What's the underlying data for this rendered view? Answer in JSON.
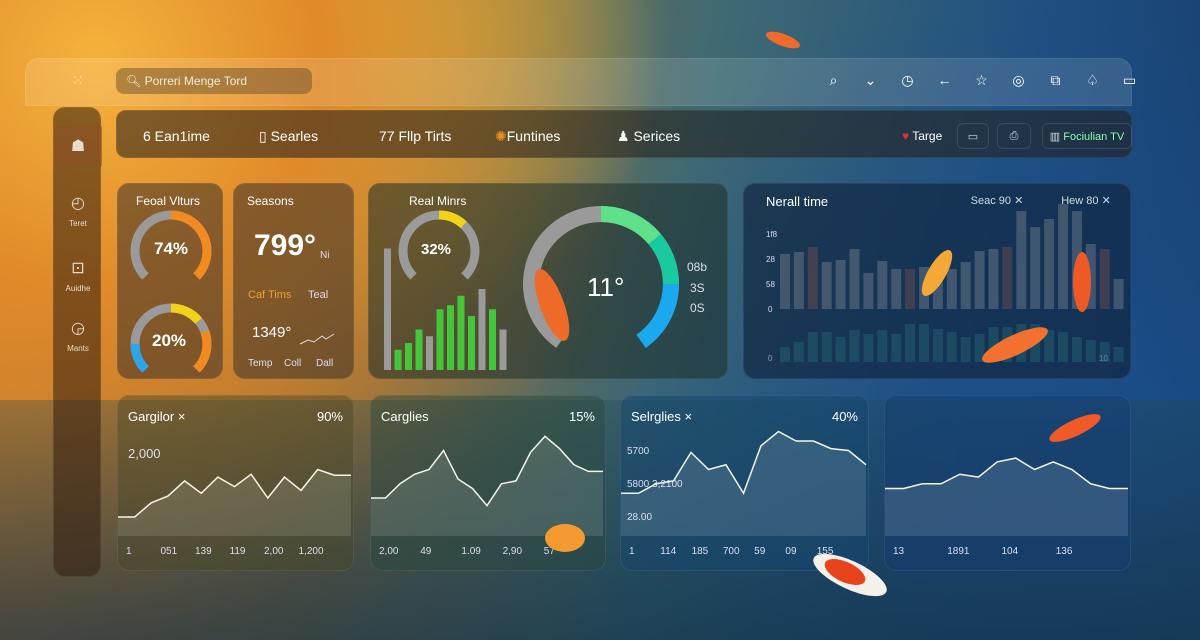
{
  "search": {
    "placeholder": "Porreri Menge Tord"
  },
  "toolbar_icons": [
    "search-icon",
    "chevron-down-icon",
    "clock-icon",
    "back-arrow-icon",
    "star-icon",
    "compass-icon",
    "copy-icon",
    "bell-icon",
    "window-icon"
  ],
  "sidebar": {
    "items": [
      {
        "label": "",
        "icon": "user-icon"
      },
      {
        "label": "Teret",
        "icon": "clock-icon"
      },
      {
        "label": "Auidhe",
        "icon": "image-icon"
      },
      {
        "label": "Mants",
        "icon": "timer-icon"
      }
    ]
  },
  "nav": {
    "items": [
      {
        "label": "6 Ean1ime"
      },
      {
        "label": "Searles",
        "icon": "document-icon"
      },
      {
        "label": "77 Fllp Tirts"
      },
      {
        "label": "Funtines",
        "icon": "sun-icon"
      },
      {
        "label": "Serices",
        "icon": "person-icon"
      }
    ],
    "right": {
      "target": "Targe",
      "tv": "Fociulian TV"
    }
  },
  "cards": {
    "gauges": {
      "title": "Feoal Vlturs",
      "g1": "74%",
      "g2": "20%",
      "v1": 74,
      "v2": 20
    },
    "seasons": {
      "title": "Seasons",
      "value": "799°",
      "unit": "Ni",
      "tab1": "Caf Tims",
      "tab2": "Teal",
      "value2": "1349°",
      "labels": [
        "Temp",
        "Coll",
        "Dall"
      ]
    },
    "real": {
      "title": "Real Minrs",
      "gauge": "32%",
      "gv": 32,
      "big": "11°",
      "scale": [
        "08b",
        "3S",
        "0S"
      ]
    },
    "overall": {
      "title": "Nerall time",
      "chip1": "Seac 90",
      "chip2": "Hew 80",
      "yticks": [
        "1f8",
        "28",
        "58",
        "0"
      ],
      "ylow": "0",
      "yend": "10"
    }
  },
  "colors": {
    "orange": "#f28a22",
    "yellow": "#f3d21a",
    "blue": "#2ba6ea",
    "green": "#46c53a",
    "gray": "#9a9a9a"
  },
  "chart_data": [
    {
      "type": "area",
      "title": "Gargilor ×",
      "badge": "90%",
      "ytick": "2,000",
      "xticks": [
        "1",
        "051",
        "139",
        "119",
        "2,00",
        "1,200"
      ],
      "values": [
        20,
        20,
        35,
        42,
        58,
        45,
        62,
        52,
        65,
        40,
        62,
        48,
        70,
        64,
        64
      ]
    },
    {
      "type": "area",
      "title": "Carglies",
      "badge": "15%",
      "ytick": "",
      "xticks": [
        "2,00",
        "49",
        "1.09",
        "2,90",
        "57"
      ],
      "values": [
        40,
        40,
        55,
        65,
        70,
        90,
        60,
        50,
        32,
        55,
        58,
        88,
        105,
        92,
        75,
        68,
        68
      ]
    },
    {
      "type": "area",
      "title": "Selrglies ×",
      "badge": "40%",
      "yticks": [
        "5700",
        "5800 3,2100",
        "28.00"
      ],
      "xticks": [
        "1",
        "114",
        "185",
        "700",
        "59",
        "09",
        "155"
      ],
      "values": [
        45,
        45,
        55,
        58,
        88,
        70,
        75,
        45,
        95,
        110,
        100,
        100,
        92,
        90,
        75
      ]
    },
    {
      "type": "area",
      "title": "",
      "badge": "",
      "xticks": [
        "13",
        "1891",
        "104",
        "136"
      ],
      "values": [
        50,
        50,
        55,
        55,
        65,
        62,
        78,
        82,
        70,
        78,
        70,
        55,
        50,
        50
      ]
    },
    {
      "type": "bar",
      "title": "Real Minrs",
      "values": [
        90,
        15,
        20,
        30,
        25,
        45,
        48,
        55,
        40,
        60,
        45,
        30
      ],
      "colors": [
        "gray",
        "green",
        "green",
        "green",
        "gray",
        "green",
        "green",
        "green",
        "green",
        "gray",
        "green",
        "gray"
      ]
    },
    {
      "type": "bar",
      "title": "Nerall time",
      "values": [
        55,
        57,
        62,
        47,
        49,
        60,
        36,
        48,
        40,
        40,
        42,
        37,
        40,
        47,
        58,
        60,
        62,
        98,
        82,
        90,
        105,
        98,
        65,
        60,
        30
      ],
      "values2": [
        15,
        20,
        30,
        30,
        25,
        32,
        28,
        32,
        28,
        38,
        38,
        33,
        30,
        25,
        28,
        35,
        35,
        38,
        38,
        32,
        30,
        25,
        22,
        20,
        15
      ]
    }
  ]
}
